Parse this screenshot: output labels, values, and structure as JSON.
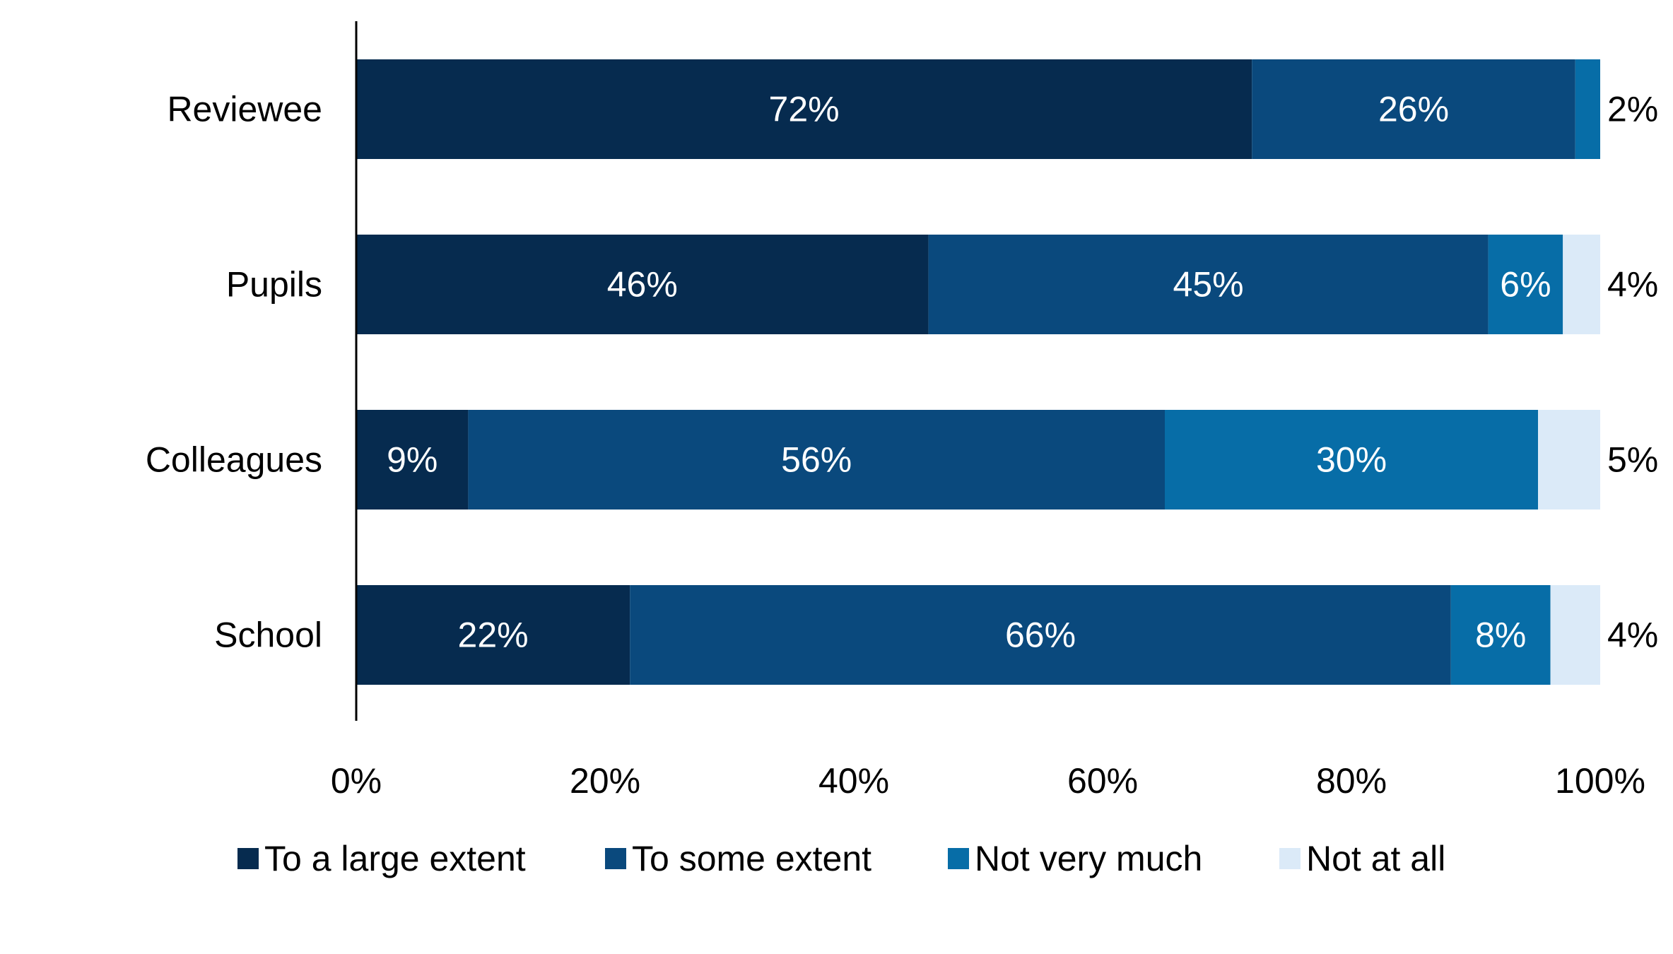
{
  "chart_data": {
    "type": "bar",
    "orientation": "horizontal",
    "stacked": true,
    "title": "",
    "xlabel": "",
    "ylabel": "",
    "xlim": [
      0,
      100
    ],
    "x_ticks": [
      "0%",
      "20%",
      "40%",
      "60%",
      "80%",
      "100%"
    ],
    "x_tick_values": [
      0,
      20,
      40,
      60,
      80,
      100
    ],
    "categories": [
      "Reviewee",
      "Pupils",
      "Colleagues",
      "School"
    ],
    "series": [
      {
        "name": "To a large extent",
        "color": "#062b4f",
        "label_color": "#ffffff",
        "values": [
          72,
          46,
          9,
          22
        ],
        "labels": [
          "72%",
          "46%",
          "9%",
          "22%"
        ]
      },
      {
        "name": "To some extent",
        "color": "#0a497d",
        "label_color": "#ffffff",
        "values": [
          26,
          45,
          56,
          66
        ],
        "labels": [
          "26%",
          "45%",
          "56%",
          "66%"
        ]
      },
      {
        "name": "Not very much",
        "color": "#076da7",
        "label_color": "#ffffff",
        "values": [
          2,
          6,
          30,
          8
        ],
        "labels": [
          "2%",
          "6%",
          "30%",
          "8%"
        ]
      },
      {
        "name": "Not at all",
        "color": "#dbeaf8",
        "label_color": "#000000",
        "values": [
          0,
          4,
          5,
          4
        ],
        "labels": [
          "",
          "4%",
          "5%",
          "4%"
        ]
      }
    ],
    "outside_labels": [
      "2%",
      "4%",
      "5%",
      "4%"
    ],
    "grid": false,
    "legend_position": "bottom"
  }
}
